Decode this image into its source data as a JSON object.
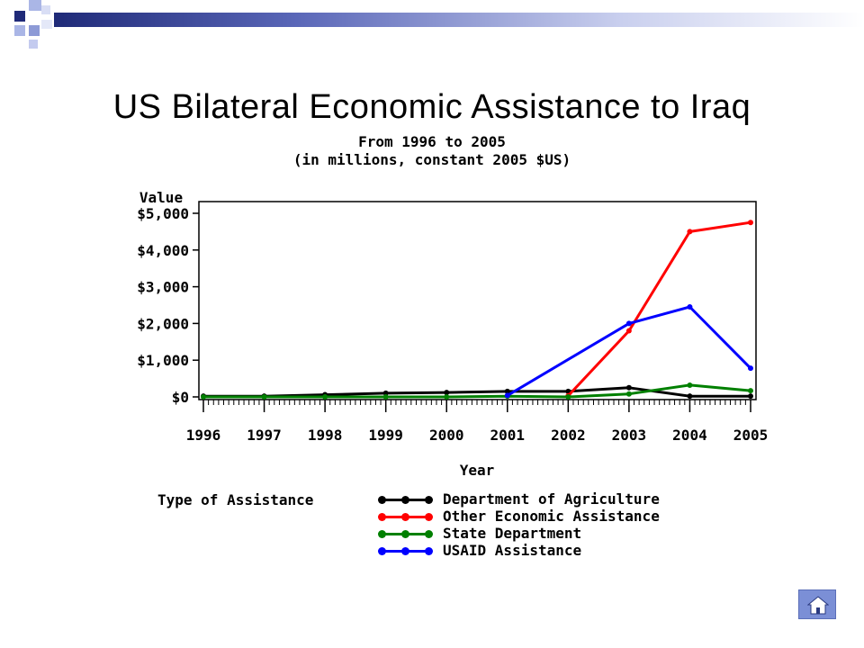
{
  "chart_data": {
    "type": "line",
    "title": "US Bilateral Economic Assistance to Iraq",
    "subtitle": [
      "From 1996 to 2005",
      "(in millions, constant 2005 $US)"
    ],
    "xlabel": "Year",
    "ylabel": "Value",
    "x": [
      "1996",
      "1997",
      "1998",
      "1999",
      "2000",
      "2001",
      "2002",
      "2003",
      "2004",
      "2005"
    ],
    "x_values": [
      1996,
      1997,
      1998,
      1999,
      2000,
      2001,
      2002,
      2003,
      2004,
      2005
    ],
    "ylim": [
      0,
      5000
    ],
    "yticks": [
      0,
      1000,
      2000,
      3000,
      4000,
      5000
    ],
    "ytick_labels": [
      "$0",
      "$1,000",
      "$2,000",
      "$3,000",
      "$4,000",
      "$5,000"
    ],
    "legend_title": "Type of Assistance",
    "legend_position": "bottom",
    "grid": false,
    "series": [
      {
        "name": "Department of Agriculture",
        "color": "#000000",
        "points": [
          [
            1996,
            20
          ],
          [
            1997,
            20
          ],
          [
            1998,
            60
          ],
          [
            1999,
            100
          ],
          [
            2000,
            120
          ],
          [
            2001,
            150
          ],
          [
            2002,
            150
          ],
          [
            2003,
            250
          ],
          [
            2004,
            20
          ],
          [
            2005,
            20
          ]
        ]
      },
      {
        "name": "Other Economic Assistance",
        "color": "#ff0000",
        "points": [
          [
            2002,
            30
          ],
          [
            2003,
            1800
          ],
          [
            2004,
            4500
          ],
          [
            2005,
            4750
          ]
        ]
      },
      {
        "name": "State Department",
        "color": "#008000",
        "points": [
          [
            1996,
            0
          ],
          [
            1997,
            0
          ],
          [
            1998,
            0
          ],
          [
            1999,
            0
          ],
          [
            2000,
            0
          ],
          [
            2001,
            20
          ],
          [
            2002,
            0
          ],
          [
            2003,
            80
          ],
          [
            2004,
            320
          ],
          [
            2005,
            170
          ]
        ]
      },
      {
        "name": "USAID Assistance",
        "color": "#0000ff",
        "points": [
          [
            2001,
            40
          ],
          [
            2003,
            2000
          ],
          [
            2004,
            2450
          ],
          [
            2005,
            780
          ]
        ]
      }
    ]
  },
  "nav": {
    "home_icon": "home-icon"
  }
}
